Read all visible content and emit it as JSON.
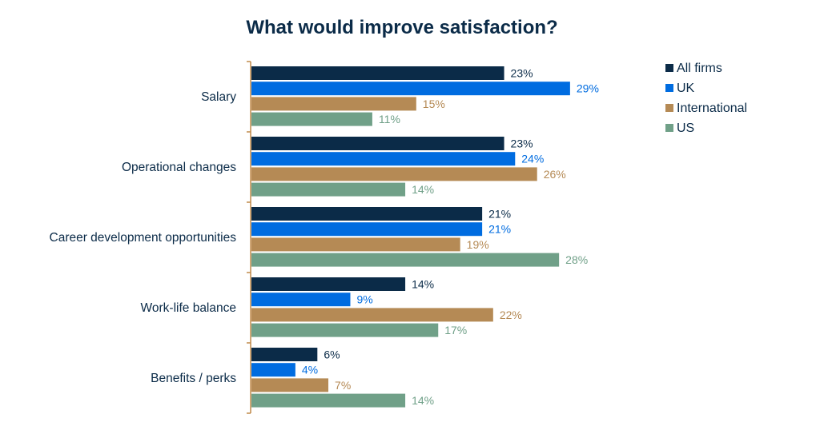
{
  "chart_data": {
    "type": "bar",
    "orientation": "horizontal",
    "title": "What would improve satisfaction?",
    "xlabel": "",
    "ylabel": "",
    "xlim": [
      0,
      30
    ],
    "grid": false,
    "legend_position": "top-right",
    "categories": [
      "Salary",
      "Operational changes",
      "Career development opportunities",
      "Work-life balance",
      "Benefits / perks"
    ],
    "series": [
      {
        "name": "All firms",
        "color": "#0b2b48",
        "values": [
          23,
          23,
          21,
          14,
          6
        ]
      },
      {
        "name": "UK",
        "color": "#006ce0",
        "values": [
          29,
          24,
          21,
          9,
          4
        ]
      },
      {
        "name": "International",
        "color": "#b58a55",
        "values": [
          15,
          26,
          19,
          22,
          7
        ]
      },
      {
        "name": "US",
        "color": "#70a088",
        "values": [
          11,
          14,
          28,
          17,
          14
        ]
      }
    ],
    "value_suffix": "%",
    "axis_color": "#c08a4a"
  }
}
